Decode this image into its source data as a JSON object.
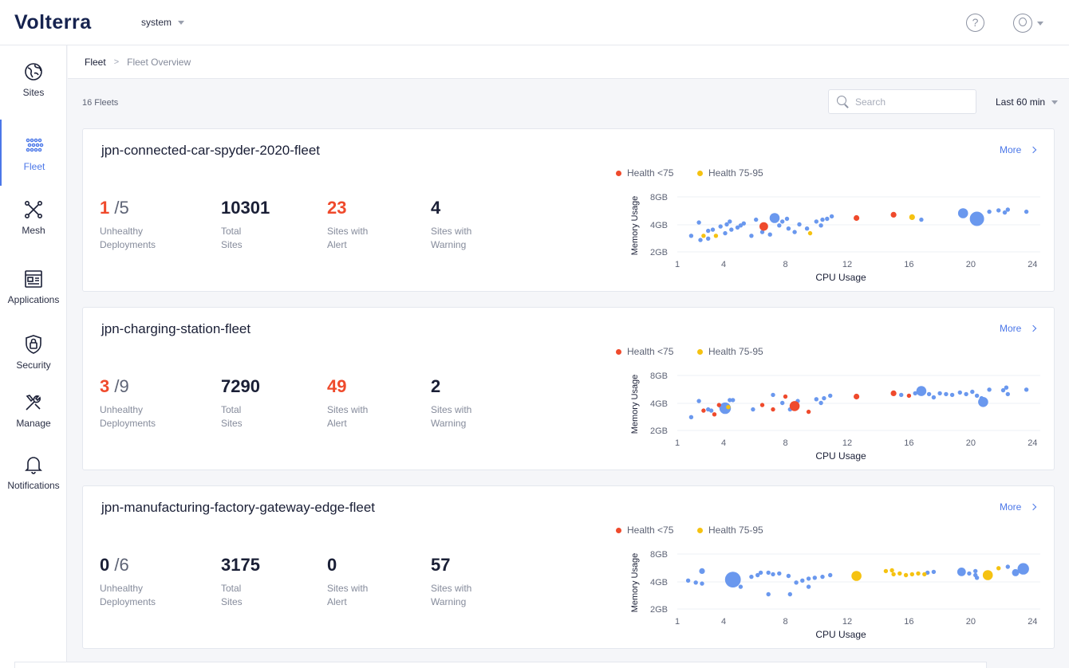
{
  "header": {
    "logo": "Volterra",
    "tenant": "system"
  },
  "sidebar": {
    "items": [
      {
        "label": "Sites",
        "icon": "globe-icon"
      },
      {
        "label": "Fleet",
        "icon": "fleet-icon",
        "active": true
      },
      {
        "label": "Mesh",
        "icon": "mesh-icon"
      },
      {
        "label": "Applications",
        "icon": "applications-icon"
      },
      {
        "label": "Security",
        "icon": "lock-shield-icon"
      },
      {
        "label": "Manage",
        "icon": "tools-icon"
      },
      {
        "label": "Notifications",
        "icon": "bell-icon"
      }
    ]
  },
  "breadcrumb": {
    "root": "Fleet",
    "separator": ">",
    "current": "Fleet Overview"
  },
  "toolbar": {
    "fleet_count": "16 Fleets",
    "search_placeholder": "Search",
    "time_range": "Last 60 min"
  },
  "colors": {
    "accent": "#4b77e8",
    "red": "#ef4a2c",
    "yellow": "#f5c211",
    "blue_point": "#6a98ee"
  },
  "labels": {
    "unhealthy": [
      "Unhealthy",
      "Deployments"
    ],
    "total": [
      "Total",
      "Sites"
    ],
    "alert": [
      "Sites with",
      "Alert"
    ],
    "warning": [
      "Sites with",
      "Warning"
    ],
    "more": "More",
    "legend_red": "Health <75",
    "legend_yellow": "Health 75-95"
  },
  "fleets": [
    {
      "name": "jpn-connected-car-spyder-2020-fleet",
      "unhealthy": "1",
      "of": "/5",
      "total": "10301",
      "alert": "23",
      "warning": "4"
    },
    {
      "name": "jpn-charging-station-fleet",
      "unhealthy": "3",
      "of": "/9",
      "total": "7290",
      "alert": "49",
      "warning": "2"
    },
    {
      "name": "jpn-manufacturing-factory-gateway-edge-fleet",
      "unhealthy": "0",
      "of": "/6",
      "total": "3175",
      "alert": "0",
      "warning": "57"
    }
  ],
  "chart_data": [
    {
      "type": "scatter",
      "title": "",
      "xlabel": "CPU Usage",
      "ylabel": "Memory Usage",
      "x_ticks": [
        "1",
        "4",
        "8",
        "12",
        "16",
        "20",
        "24"
      ],
      "y_ticks": [
        "2GB",
        "4GB",
        "8GB"
      ],
      "xlim": [
        1,
        24.5
      ],
      "ylim": [
        2,
        8
      ],
      "grid": true,
      "legend": "top",
      "series": [
        {
          "name": "Health <75",
          "color": "#ef4a2c",
          "points": [
            [
              6.6,
              3.8,
              6
            ],
            [
              12.6,
              4.7,
              4
            ],
            [
              15,
              5.1,
              4
            ]
          ]
        },
        {
          "name": "Health 75-95",
          "color": "#f5c211",
          "points": [
            [
              16.2,
              4.8,
              4
            ],
            [
              3.5,
              3.0,
              3
            ],
            [
              2.7,
              3.0,
              3
            ],
            [
              9.6,
              3.2,
              3
            ]
          ]
        },
        {
          "name": "",
          "color": "#6a98ee",
          "points": [
            [
              2.4,
              4.2,
              3
            ],
            [
              1.9,
              3.0,
              3
            ],
            [
              3.0,
              3.4,
              3
            ],
            [
              3.3,
              3.5,
              3
            ],
            [
              3.8,
              3.8,
              3
            ],
            [
              4.2,
              4.0,
              3
            ],
            [
              4.4,
              4.3,
              3
            ],
            [
              4.5,
              3.5,
              3
            ],
            [
              4.9,
              3.7,
              3
            ],
            [
              5.1,
              3.9,
              3
            ],
            [
              5.3,
              4.1,
              3
            ],
            [
              6.1,
              4.5,
              3
            ],
            [
              6.5,
              3.3,
              3
            ],
            [
              7.3,
              4.7,
              7
            ],
            [
              7.6,
              3.9,
              3
            ],
            [
              7.8,
              4.3,
              3
            ],
            [
              8.1,
              4.6,
              3
            ],
            [
              8.2,
              3.6,
              3
            ],
            [
              8.6,
              3.3,
              3
            ],
            [
              8.9,
              4.0,
              3
            ],
            [
              9.4,
              3.6,
              3
            ],
            [
              10.0,
              4.3,
              3
            ],
            [
              10.4,
              4.5,
              3
            ],
            [
              10.7,
              4.6,
              3
            ],
            [
              11.0,
              4.9,
              3
            ],
            [
              10.3,
              3.9,
              3
            ],
            [
              16.8,
              4.5,
              3
            ],
            [
              19.5,
              5.3,
              7
            ],
            [
              20.4,
              4.6,
              10
            ],
            [
              21.2,
              5.5,
              3
            ],
            [
              21.8,
              5.7,
              3
            ],
            [
              22.2,
              5.4,
              3
            ],
            [
              22.4,
              5.8,
              3
            ],
            [
              23.6,
              5.5,
              3
            ],
            [
              3.0,
              2.8,
              3
            ],
            [
              2.5,
              2.7,
              3
            ],
            [
              4.1,
              3.2,
              3
            ],
            [
              5.8,
              3.0,
              3
            ],
            [
              7.0,
              3.1,
              3
            ]
          ]
        }
      ]
    },
    {
      "type": "scatter",
      "title": "",
      "xlabel": "CPU Usage",
      "ylabel": "Memory Usage",
      "x_ticks": [
        "1",
        "4",
        "8",
        "12",
        "16",
        "20",
        "24"
      ],
      "y_ticks": [
        "2GB",
        "4GB",
        "8GB"
      ],
      "xlim": [
        1,
        24.5
      ],
      "ylim": [
        2,
        8
      ],
      "grid": true,
      "legend": "top",
      "series": [
        {
          "name": "Health <75",
          "color": "#ef4a2c",
          "points": [
            [
              8.6,
              3.7,
              7
            ],
            [
              6.5,
              3.8,
              3
            ],
            [
              3.7,
              3.8,
              3
            ],
            [
              8.0,
              4.7,
              3
            ],
            [
              12.6,
              4.7,
              4
            ],
            [
              15,
              5.1,
              4
            ],
            [
              16,
              4.8,
              3
            ],
            [
              2.7,
              3.3,
              3
            ],
            [
              3.4,
              3.0,
              3
            ],
            [
              9.5,
              3.2,
              3
            ],
            [
              7.2,
              3.4,
              3
            ]
          ]
        },
        {
          "name": "Health 75-95",
          "color": "#f5c211",
          "points": [
            [
              4.3,
              3.6,
              3
            ]
          ]
        },
        {
          "name": "",
          "color": "#6a98ee",
          "points": [
            [
              1.9,
              2.8,
              3
            ],
            [
              2.4,
              4.2,
              3
            ],
            [
              3.0,
              3.4,
              3
            ],
            [
              3.2,
              3.3,
              3
            ],
            [
              3.8,
              3.7,
              3
            ],
            [
              4.1,
              3.5,
              8
            ],
            [
              4.4,
              4.3,
              3
            ],
            [
              4.6,
              4.3,
              3
            ],
            [
              5.9,
              3.4,
              3
            ],
            [
              7.2,
              4.9,
              3
            ],
            [
              7.8,
              4.0,
              3
            ],
            [
              8.3,
              3.4,
              3
            ],
            [
              8.8,
              4.2,
              3
            ],
            [
              10.0,
              4.4,
              3
            ],
            [
              10.5,
              4.5,
              3
            ],
            [
              10.9,
              4.8,
              3
            ],
            [
              10.3,
              4.0,
              3
            ],
            [
              15.5,
              4.9,
              3
            ],
            [
              16.4,
              5.1,
              3
            ],
            [
              16.8,
              5.4,
              7
            ],
            [
              17.3,
              5.0,
              3
            ],
            [
              17.6,
              4.6,
              3
            ],
            [
              18.0,
              5.1,
              3
            ],
            [
              18.4,
              5.0,
              3
            ],
            [
              18.8,
              4.9,
              3
            ],
            [
              19.3,
              5.2,
              3
            ],
            [
              19.7,
              5.0,
              3
            ],
            [
              20.1,
              5.3,
              3
            ],
            [
              20.4,
              4.8,
              3
            ],
            [
              20.7,
              4.5,
              3
            ],
            [
              20.8,
              4.1,
              7
            ],
            [
              21.2,
              5.6,
              3
            ],
            [
              22.1,
              5.5,
              3
            ],
            [
              22.4,
              5.0,
              3
            ],
            [
              22.3,
              5.9,
              3
            ],
            [
              23.6,
              5.6,
              3
            ]
          ]
        }
      ]
    },
    {
      "type": "scatter",
      "title": "",
      "xlabel": "CPU Usage",
      "ylabel": "Memory Usage",
      "x_ticks": [
        "1",
        "4",
        "8",
        "12",
        "16",
        "20",
        "24"
      ],
      "y_ticks": [
        "2GB",
        "4GB",
        "8GB"
      ],
      "xlim": [
        1,
        24.5
      ],
      "ylim": [
        2,
        8
      ],
      "grid": true,
      "legend": "top",
      "series": [
        {
          "name": "Health <75",
          "color": "#ef4a2c",
          "points": []
        },
        {
          "name": "Health 75-95",
          "color": "#f5c211",
          "points": [
            [
              12.6,
              4.6,
              7
            ],
            [
              14.5,
              5.2,
              3
            ],
            [
              14.9,
              5.3,
              3
            ],
            [
              15.0,
              4.8,
              3
            ],
            [
              15.4,
              4.9,
              3
            ],
            [
              15.8,
              4.7,
              3
            ],
            [
              16.2,
              4.8,
              3
            ],
            [
              16.6,
              4.9,
              3
            ],
            [
              17.0,
              4.8,
              3
            ],
            [
              21.1,
              4.7,
              7
            ],
            [
              21.8,
              5.6,
              3
            ]
          ]
        },
        {
          "name": "",
          "color": "#6a98ee",
          "points": [
            [
              1.7,
              4.1,
              3
            ],
            [
              2.2,
              3.9,
              3
            ],
            [
              2.6,
              3.8,
              3
            ],
            [
              2.6,
              5.2,
              4
            ],
            [
              4.6,
              4.2,
              11
            ],
            [
              5.1,
              3.5,
              3
            ],
            [
              5.8,
              4.5,
              3
            ],
            [
              6.2,
              4.7,
              3
            ],
            [
              6.4,
              5.0,
              3
            ],
            [
              6.9,
              5.0,
              3
            ],
            [
              7.2,
              4.8,
              3
            ],
            [
              7.6,
              4.9,
              3
            ],
            [
              8.2,
              4.6,
              3
            ],
            [
              8.7,
              3.9,
              3
            ],
            [
              9.1,
              4.1,
              3
            ],
            [
              9.5,
              4.3,
              3
            ],
            [
              9.9,
              4.4,
              3
            ],
            [
              10.4,
              4.5,
              3
            ],
            [
              10.9,
              4.7,
              3
            ],
            [
              9.5,
              3.5,
              3
            ],
            [
              6.9,
              2.9,
              3
            ],
            [
              8.3,
              2.9,
              3
            ],
            [
              17.2,
              5.0,
              3
            ],
            [
              17.6,
              5.1,
              3
            ],
            [
              19.4,
              5.1,
              6
            ],
            [
              19.9,
              4.9,
              3
            ],
            [
              20.3,
              4.7,
              3
            ],
            [
              20.4,
              4.4,
              3
            ],
            [
              20.3,
              5.2,
              3
            ],
            [
              22.9,
              5.0,
              5
            ],
            [
              23.4,
              5.5,
              8
            ],
            [
              22.4,
              5.8,
              3
            ]
          ]
        }
      ]
    }
  ]
}
